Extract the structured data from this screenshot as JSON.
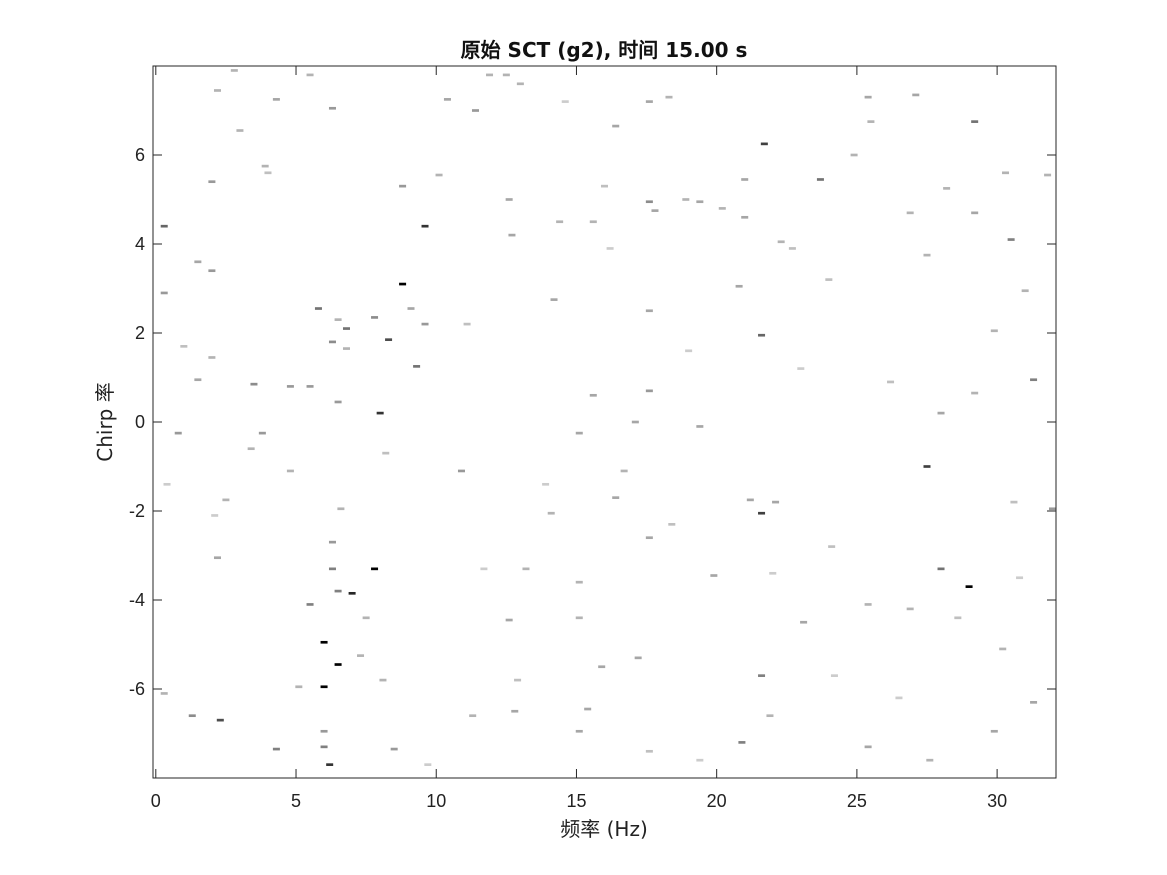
{
  "chart_data": {
    "type": "heatmap",
    "title": "原始 SCT (g2), 时间 15.00 s",
    "xlabel": "频率 (Hz)",
    "ylabel": "Chirp 率",
    "xlim": [
      -0.1,
      32.1
    ],
    "ylim": [
      -8.0,
      8.0
    ],
    "xticks": [
      0,
      5,
      10,
      15,
      20,
      25,
      30
    ],
    "yticks": [
      -6,
      -4,
      -2,
      0,
      2,
      4,
      6
    ],
    "xtick_labels": [
      "0",
      "5",
      "10",
      "15",
      "20",
      "25",
      "30"
    ],
    "ytick_labels": [
      "-6",
      "-4",
      "-2",
      "0",
      "2",
      "4",
      "6"
    ],
    "colormap": "white-to-black",
    "cell_width_hz": 0.25,
    "cell_height_chirp": 0.06,
    "points": [
      {
        "x": 8.8,
        "y": 3.1,
        "v": 1.0
      },
      {
        "x": 7.8,
        "y": -3.3,
        "v": 1.0
      },
      {
        "x": 6.0,
        "y": -4.95,
        "v": 1.0
      },
      {
        "x": 6.0,
        "y": -5.95,
        "v": 1.0
      },
      {
        "x": 6.5,
        "y": -5.45,
        "v": 1.0
      },
      {
        "x": 29.0,
        "y": -3.7,
        "v": 1.0
      },
      {
        "x": 6.2,
        "y": -7.7,
        "v": 0.8
      },
      {
        "x": 7.0,
        "y": -3.85,
        "v": 0.85
      },
      {
        "x": 21.7,
        "y": 6.25,
        "v": 0.75
      },
      {
        "x": 27.5,
        "y": -1.0,
        "v": 0.75
      },
      {
        "x": 21.6,
        "y": -2.05,
        "v": 0.75
      },
      {
        "x": 8.0,
        "y": 0.2,
        "v": 0.8
      },
      {
        "x": 9.6,
        "y": 4.4,
        "v": 0.8
      },
      {
        "x": 8.3,
        "y": 1.85,
        "v": 0.7
      },
      {
        "x": 2.3,
        "y": -6.7,
        "v": 0.7
      },
      {
        "x": 0.3,
        "y": 4.4,
        "v": 0.6
      },
      {
        "x": 5.8,
        "y": 2.55,
        "v": 0.55
      },
      {
        "x": 6.8,
        "y": 2.1,
        "v": 0.55
      },
      {
        "x": 9.3,
        "y": 1.25,
        "v": 0.55
      },
      {
        "x": 21.6,
        "y": 1.95,
        "v": 0.6
      },
      {
        "x": 23.7,
        "y": 5.45,
        "v": 0.55
      },
      {
        "x": 29.2,
        "y": 6.75,
        "v": 0.55
      },
      {
        "x": 31.3,
        "y": 0.95,
        "v": 0.5
      },
      {
        "x": 30.5,
        "y": 4.1,
        "v": 0.5
      },
      {
        "x": 28.0,
        "y": -3.3,
        "v": 0.55
      },
      {
        "x": 21.6,
        "y": -5.7,
        "v": 0.5
      },
      {
        "x": 20.9,
        "y": -7.2,
        "v": 0.5
      },
      {
        "x": 5.5,
        "y": -4.1,
        "v": 0.5
      },
      {
        "x": 6.0,
        "y": -7.3,
        "v": 0.5
      },
      {
        "x": 6.0,
        "y": -6.95,
        "v": 0.4
      },
      {
        "x": 4.3,
        "y": -7.35,
        "v": 0.5
      },
      {
        "x": 1.3,
        "y": -6.6,
        "v": 0.45
      },
      {
        "x": 8.5,
        "y": -7.35,
        "v": 0.4
      },
      {
        "x": 6.5,
        "y": -3.8,
        "v": 0.5
      },
      {
        "x": 6.3,
        "y": -3.3,
        "v": 0.5
      },
      {
        "x": 6.3,
        "y": -2.7,
        "v": 0.4
      },
      {
        "x": 7.8,
        "y": 2.35,
        "v": 0.45
      },
      {
        "x": 6.3,
        "y": 1.8,
        "v": 0.45
      },
      {
        "x": 3.5,
        "y": 0.85,
        "v": 0.45
      },
      {
        "x": 4.8,
        "y": 0.8,
        "v": 0.4
      },
      {
        "x": 5.5,
        "y": 0.8,
        "v": 0.4
      },
      {
        "x": 9.6,
        "y": 2.2,
        "v": 0.4
      },
      {
        "x": 8.8,
        "y": 5.3,
        "v": 0.4
      },
      {
        "x": 6.3,
        "y": 7.05,
        "v": 0.4
      },
      {
        "x": 11.4,
        "y": 7.0,
        "v": 0.4
      },
      {
        "x": 10.4,
        "y": 7.25,
        "v": 0.35
      },
      {
        "x": 2.0,
        "y": 5.4,
        "v": 0.4
      },
      {
        "x": 2.0,
        "y": 3.4,
        "v": 0.4
      },
      {
        "x": 1.5,
        "y": 3.6,
        "v": 0.35
      },
      {
        "x": 0.3,
        "y": 2.9,
        "v": 0.4
      },
      {
        "x": 0.8,
        "y": -0.25,
        "v": 0.4
      },
      {
        "x": 3.8,
        "y": -0.25,
        "v": 0.4
      },
      {
        "x": 6.5,
        "y": 0.45,
        "v": 0.4
      },
      {
        "x": 10.9,
        "y": -1.1,
        "v": 0.4
      },
      {
        "x": 12.7,
        "y": 4.2,
        "v": 0.35
      },
      {
        "x": 12.6,
        "y": 5.0,
        "v": 0.35
      },
      {
        "x": 14.4,
        "y": 4.5,
        "v": 0.3
      },
      {
        "x": 15.6,
        "y": 4.5,
        "v": 0.3
      },
      {
        "x": 14.2,
        "y": 2.75,
        "v": 0.35
      },
      {
        "x": 16.4,
        "y": 6.65,
        "v": 0.35
      },
      {
        "x": 17.6,
        "y": 7.2,
        "v": 0.35
      },
      {
        "x": 18.3,
        "y": 7.3,
        "v": 0.3
      },
      {
        "x": 17.6,
        "y": 4.95,
        "v": 0.45
      },
      {
        "x": 17.8,
        "y": 4.75,
        "v": 0.35
      },
      {
        "x": 18.9,
        "y": 5.0,
        "v": 0.3
      },
      {
        "x": 19.4,
        "y": 4.95,
        "v": 0.35
      },
      {
        "x": 17.6,
        "y": 2.5,
        "v": 0.35
      },
      {
        "x": 17.6,
        "y": 0.7,
        "v": 0.4
      },
      {
        "x": 17.1,
        "y": 0.0,
        "v": 0.35
      },
      {
        "x": 15.6,
        "y": 0.6,
        "v": 0.35
      },
      {
        "x": 15.1,
        "y": -0.25,
        "v": 0.35
      },
      {
        "x": 19.4,
        "y": -0.1,
        "v": 0.35
      },
      {
        "x": 16.4,
        "y": -1.7,
        "v": 0.35
      },
      {
        "x": 17.6,
        "y": -2.6,
        "v": 0.35
      },
      {
        "x": 15.1,
        "y": -3.6,
        "v": 0.3
      },
      {
        "x": 15.1,
        "y": -4.4,
        "v": 0.3
      },
      {
        "x": 15.9,
        "y": -5.5,
        "v": 0.35
      },
      {
        "x": 17.2,
        "y": -5.3,
        "v": 0.35
      },
      {
        "x": 15.4,
        "y": -6.45,
        "v": 0.35
      },
      {
        "x": 15.1,
        "y": -6.95,
        "v": 0.35
      },
      {
        "x": 12.8,
        "y": -6.5,
        "v": 0.35
      },
      {
        "x": 12.6,
        "y": -4.45,
        "v": 0.35
      },
      {
        "x": 13.2,
        "y": -3.3,
        "v": 0.3
      },
      {
        "x": 11.3,
        "y": -6.6,
        "v": 0.3
      },
      {
        "x": 19.9,
        "y": -3.45,
        "v": 0.35
      },
      {
        "x": 20.8,
        "y": 3.05,
        "v": 0.35
      },
      {
        "x": 21.0,
        "y": 4.6,
        "v": 0.35
      },
      {
        "x": 21.0,
        "y": 5.45,
        "v": 0.35
      },
      {
        "x": 22.3,
        "y": 4.05,
        "v": 0.3
      },
      {
        "x": 21.2,
        "y": -1.75,
        "v": 0.35
      },
      {
        "x": 22.1,
        "y": -1.8,
        "v": 0.35
      },
      {
        "x": 23.1,
        "y": -4.5,
        "v": 0.35
      },
      {
        "x": 21.9,
        "y": -6.6,
        "v": 0.3
      },
      {
        "x": 25.4,
        "y": -7.3,
        "v": 0.35
      },
      {
        "x": 25.4,
        "y": 7.3,
        "v": 0.35
      },
      {
        "x": 27.1,
        "y": 7.35,
        "v": 0.35
      },
      {
        "x": 29.2,
        "y": 4.7,
        "v": 0.35
      },
      {
        "x": 28.2,
        "y": 5.25,
        "v": 0.3
      },
      {
        "x": 27.5,
        "y": 3.75,
        "v": 0.3
      },
      {
        "x": 29.9,
        "y": 2.05,
        "v": 0.3
      },
      {
        "x": 28.0,
        "y": 0.2,
        "v": 0.35
      },
      {
        "x": 31.3,
        "y": -6.3,
        "v": 0.35
      },
      {
        "x": 30.2,
        "y": -5.1,
        "v": 0.3
      },
      {
        "x": 29.9,
        "y": -6.95,
        "v": 0.35
      },
      {
        "x": 32.0,
        "y": -1.95,
        "v": 0.4
      },
      {
        "x": 5.5,
        "y": 7.8,
        "v": 0.3
      },
      {
        "x": 2.8,
        "y": 7.9,
        "v": 0.3
      },
      {
        "x": 2.2,
        "y": 7.45,
        "v": 0.3
      },
      {
        "x": 4.3,
        "y": 7.25,
        "v": 0.35
      },
      {
        "x": 3.0,
        "y": 6.55,
        "v": 0.3
      },
      {
        "x": 3.9,
        "y": 5.75,
        "v": 0.3
      },
      {
        "x": 10.1,
        "y": 5.55,
        "v": 0.3
      },
      {
        "x": 6.8,
        "y": 1.65,
        "v": 0.3
      },
      {
        "x": 3.4,
        "y": -0.6,
        "v": 0.3
      },
      {
        "x": 2.2,
        "y": -3.05,
        "v": 0.35
      },
      {
        "x": 2.5,
        "y": -1.75,
        "v": 0.3
      },
      {
        "x": 0.3,
        "y": -6.1,
        "v": 0.3
      },
      {
        "x": 6.5,
        "y": 2.3,
        "v": 0.3
      },
      {
        "x": 9.1,
        "y": 2.55,
        "v": 0.35
      },
      {
        "x": 8.1,
        "y": -5.8,
        "v": 0.3
      },
      {
        "x": 7.5,
        "y": -4.4,
        "v": 0.3
      },
      {
        "x": 6.6,
        "y": -1.95,
        "v": 0.3
      },
      {
        "x": 4.8,
        "y": -1.1,
        "v": 0.3
      },
      {
        "x": 1.5,
        "y": 0.95,
        "v": 0.35
      },
      {
        "x": 2.0,
        "y": 1.45,
        "v": 0.3
      },
      {
        "x": 5.1,
        "y": -5.95,
        "v": 0.3
      },
      {
        "x": 7.3,
        "y": -5.25,
        "v": 0.3
      },
      {
        "x": 14.1,
        "y": -2.05,
        "v": 0.3
      },
      {
        "x": 16.7,
        "y": -1.1,
        "v": 0.3
      },
      {
        "x": 20.2,
        "y": 4.8,
        "v": 0.3
      },
      {
        "x": 24.9,
        "y": 6.0,
        "v": 0.3
      },
      {
        "x": 25.5,
        "y": 6.75,
        "v": 0.3
      },
      {
        "x": 26.9,
        "y": 4.7,
        "v": 0.3
      },
      {
        "x": 26.9,
        "y": -4.2,
        "v": 0.3
      },
      {
        "x": 27.6,
        "y": -7.6,
        "v": 0.3
      },
      {
        "x": 25.4,
        "y": -4.1,
        "v": 0.3
      },
      {
        "x": 30.3,
        "y": 5.6,
        "v": 0.3
      },
      {
        "x": 31.8,
        "y": 5.55,
        "v": 0.3
      },
      {
        "x": 31.0,
        "y": 2.95,
        "v": 0.3
      },
      {
        "x": 29.2,
        "y": 0.65,
        "v": 0.3
      },
      {
        "x": 13.0,
        "y": 7.6,
        "v": 0.3
      },
      {
        "x": 11.9,
        "y": 7.8,
        "v": 0.3
      },
      {
        "x": 12.5,
        "y": 7.8,
        "v": 0.3
      },
      {
        "x": 1.0,
        "y": 1.7,
        "v": 0.25
      },
      {
        "x": 4.0,
        "y": 5.6,
        "v": 0.25
      },
      {
        "x": 8.2,
        "y": -0.7,
        "v": 0.25
      },
      {
        "x": 11.1,
        "y": 2.2,
        "v": 0.25
      },
      {
        "x": 12.9,
        "y": -5.8,
        "v": 0.25
      },
      {
        "x": 16.0,
        "y": 5.3,
        "v": 0.25
      },
      {
        "x": 18.4,
        "y": -2.3,
        "v": 0.25
      },
      {
        "x": 22.7,
        "y": 3.9,
        "v": 0.25
      },
      {
        "x": 24.1,
        "y": -2.8,
        "v": 0.25
      },
      {
        "x": 26.2,
        "y": 0.9,
        "v": 0.25
      },
      {
        "x": 28.6,
        "y": -4.4,
        "v": 0.25
      },
      {
        "x": 30.6,
        "y": -1.8,
        "v": 0.25
      },
      {
        "x": 23.0,
        "y": 1.2,
        "v": 0.2
      },
      {
        "x": 19.0,
        "y": 1.6,
        "v": 0.2
      },
      {
        "x": 13.9,
        "y": -1.4,
        "v": 0.2
      },
      {
        "x": 9.7,
        "y": -7.7,
        "v": 0.2
      },
      {
        "x": 2.1,
        "y": -2.1,
        "v": 0.2
      },
      {
        "x": 0.4,
        "y": -1.4,
        "v": 0.2
      },
      {
        "x": 11.7,
        "y": -3.3,
        "v": 0.2
      },
      {
        "x": 22.0,
        "y": -3.4,
        "v": 0.2
      },
      {
        "x": 24.2,
        "y": -5.7,
        "v": 0.2
      },
      {
        "x": 26.5,
        "y": -6.2,
        "v": 0.2
      },
      {
        "x": 30.8,
        "y": -3.5,
        "v": 0.2
      },
      {
        "x": 17.6,
        "y": -7.4,
        "v": 0.25
      },
      {
        "x": 19.4,
        "y": -7.6,
        "v": 0.2
      },
      {
        "x": 14.6,
        "y": 7.2,
        "v": 0.2
      },
      {
        "x": 16.2,
        "y": 3.9,
        "v": 0.2
      },
      {
        "x": 24.0,
        "y": 3.2,
        "v": 0.25
      }
    ]
  }
}
